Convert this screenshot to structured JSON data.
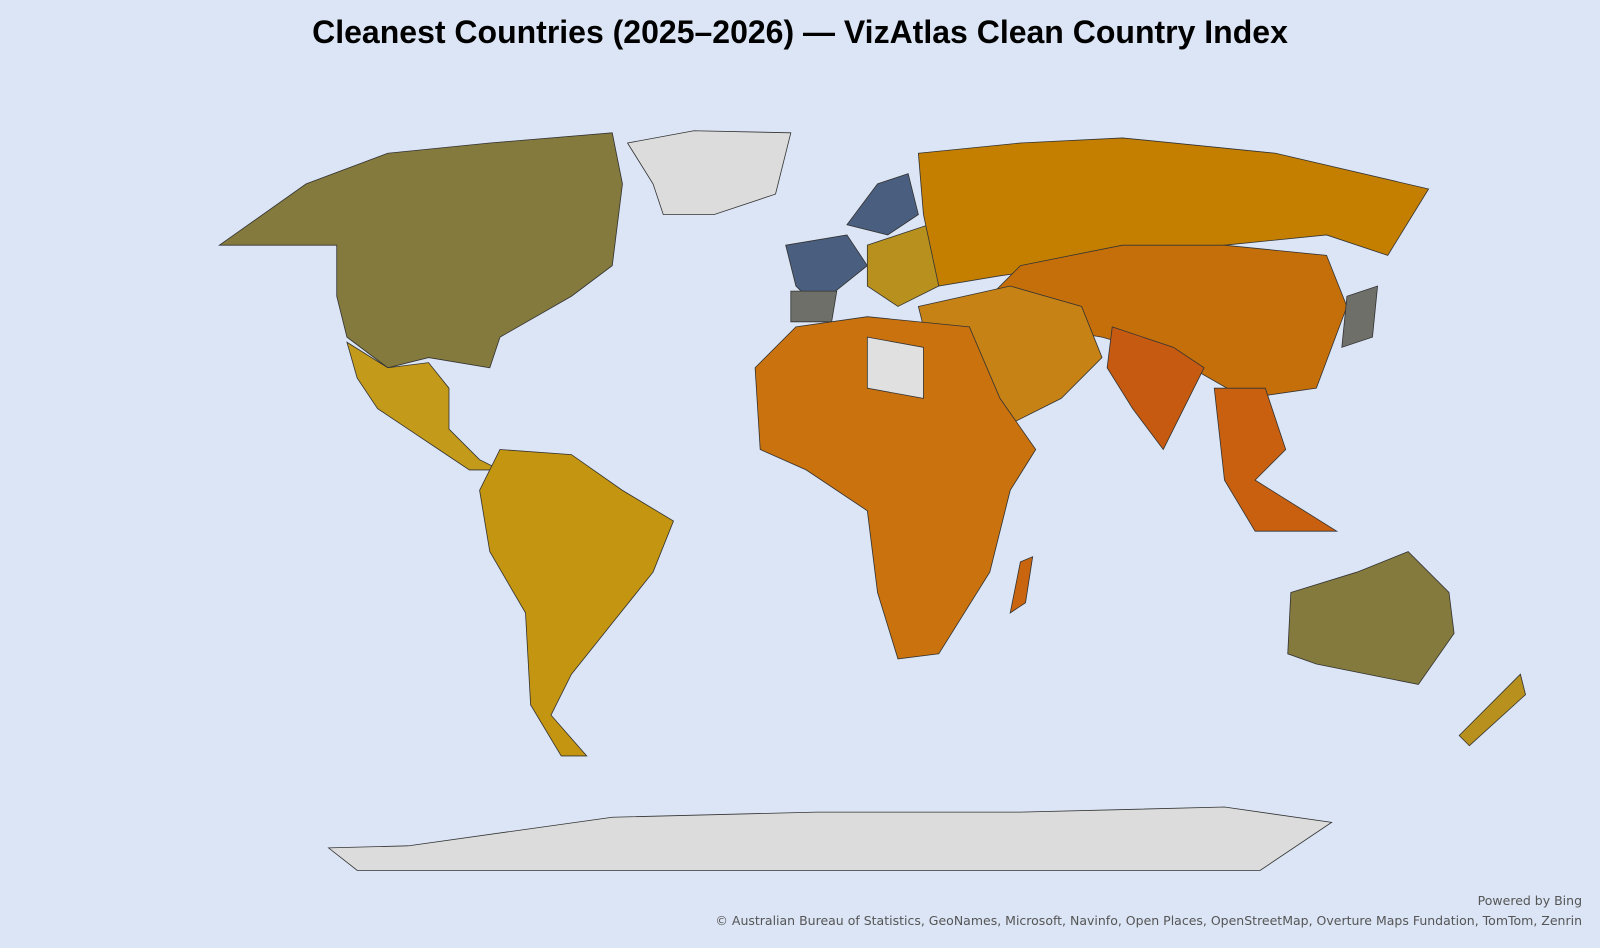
{
  "title": "Cleanest Countries (2025–2026) — VizAtlas Clean Country Index",
  "attribution": {
    "powered_by": "Powered by Bing",
    "credits": "© Australian Bureau of Statistics, GeoNames, Microsoft, Navinfo, Open Places, OpenStreetMap, Overture Maps Fundation, TomTom, Zenrin"
  }
}
